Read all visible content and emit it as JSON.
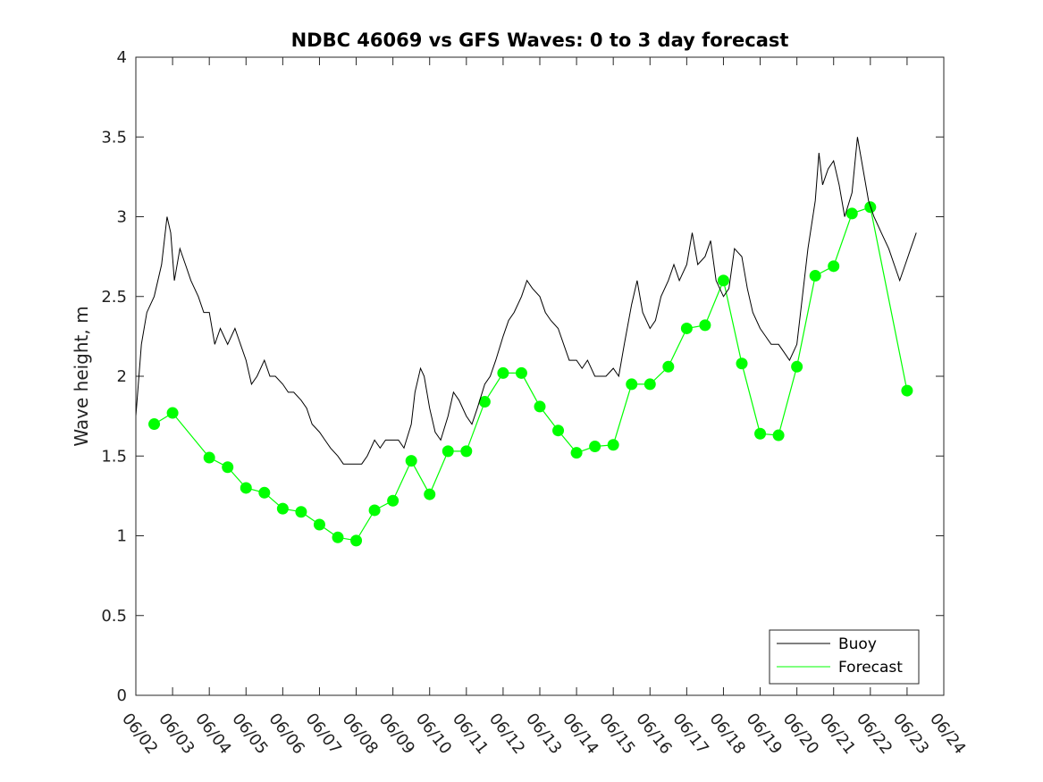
{
  "chart_data": {
    "type": "line",
    "title": "NDBC 46069 vs GFS Waves: 0 to 3 day forecast",
    "xlabel": "",
    "ylabel": "Wave height, m",
    "xlim": [
      "06/02",
      "06/24"
    ],
    "ylim": [
      0,
      4
    ],
    "x_ticks": [
      "06/02",
      "06/03",
      "06/04",
      "06/05",
      "06/06",
      "06/07",
      "06/08",
      "06/09",
      "06/10",
      "06/11",
      "06/12",
      "06/13",
      "06/14",
      "06/15",
      "06/16",
      "06/17",
      "06/18",
      "06/19",
      "06/20",
      "06/21",
      "06/22",
      "06/23",
      "06/24"
    ],
    "y_ticks": [
      "0",
      "0.5",
      "1",
      "1.5",
      "2",
      "2.5",
      "3",
      "3.5",
      "4"
    ],
    "grid": false,
    "legend_position": "bottom-right",
    "colors": {
      "buoy": "#000000",
      "forecast": "#00ff00"
    },
    "series": [
      {
        "name": "Buoy",
        "color": "#000000",
        "points_day_value": [
          [
            0.0,
            1.75
          ],
          [
            0.15,
            2.2
          ],
          [
            0.3,
            2.4
          ],
          [
            0.5,
            2.5
          ],
          [
            0.7,
            2.7
          ],
          [
            0.85,
            3.0
          ],
          [
            0.95,
            2.9
          ],
          [
            1.05,
            2.6
          ],
          [
            1.2,
            2.8
          ],
          [
            1.35,
            2.7
          ],
          [
            1.5,
            2.6
          ],
          [
            1.7,
            2.5
          ],
          [
            1.85,
            2.4
          ],
          [
            2.0,
            2.4
          ],
          [
            2.15,
            2.2
          ],
          [
            2.3,
            2.3
          ],
          [
            2.5,
            2.2
          ],
          [
            2.7,
            2.3
          ],
          [
            2.85,
            2.2
          ],
          [
            3.0,
            2.1
          ],
          [
            3.15,
            1.95
          ],
          [
            3.3,
            2.0
          ],
          [
            3.5,
            2.1
          ],
          [
            3.65,
            2.0
          ],
          [
            3.8,
            2.0
          ],
          [
            4.0,
            1.95
          ],
          [
            4.15,
            1.9
          ],
          [
            4.3,
            1.9
          ],
          [
            4.5,
            1.85
          ],
          [
            4.65,
            1.8
          ],
          [
            4.8,
            1.7
          ],
          [
            5.0,
            1.65
          ],
          [
            5.15,
            1.6
          ],
          [
            5.3,
            1.55
          ],
          [
            5.5,
            1.5
          ],
          [
            5.65,
            1.45
          ],
          [
            5.8,
            1.45
          ],
          [
            6.0,
            1.45
          ],
          [
            6.15,
            1.45
          ],
          [
            6.3,
            1.5
          ],
          [
            6.5,
            1.6
          ],
          [
            6.65,
            1.55
          ],
          [
            6.8,
            1.6
          ],
          [
            7.0,
            1.6
          ],
          [
            7.15,
            1.6
          ],
          [
            7.3,
            1.55
          ],
          [
            7.5,
            1.7
          ],
          [
            7.6,
            1.9
          ],
          [
            7.75,
            2.05
          ],
          [
            7.85,
            2.0
          ],
          [
            8.0,
            1.8
          ],
          [
            8.15,
            1.65
          ],
          [
            8.3,
            1.6
          ],
          [
            8.5,
            1.75
          ],
          [
            8.65,
            1.9
          ],
          [
            8.8,
            1.85
          ],
          [
            9.0,
            1.75
          ],
          [
            9.15,
            1.7
          ],
          [
            9.3,
            1.8
          ],
          [
            9.5,
            1.95
          ],
          [
            9.65,
            2.0
          ],
          [
            9.8,
            2.1
          ],
          [
            10.0,
            2.25
          ],
          [
            10.15,
            2.35
          ],
          [
            10.3,
            2.4
          ],
          [
            10.5,
            2.5
          ],
          [
            10.65,
            2.6
          ],
          [
            10.8,
            2.55
          ],
          [
            11.0,
            2.5
          ],
          [
            11.15,
            2.4
          ],
          [
            11.3,
            2.35
          ],
          [
            11.5,
            2.3
          ],
          [
            11.65,
            2.2
          ],
          [
            11.8,
            2.1
          ],
          [
            12.0,
            2.1
          ],
          [
            12.15,
            2.05
          ],
          [
            12.3,
            2.1
          ],
          [
            12.5,
            2.0
          ],
          [
            12.65,
            2.0
          ],
          [
            12.8,
            2.0
          ],
          [
            13.0,
            2.05
          ],
          [
            13.15,
            2.0
          ],
          [
            13.3,
            2.2
          ],
          [
            13.5,
            2.45
          ],
          [
            13.65,
            2.6
          ],
          [
            13.8,
            2.4
          ],
          [
            14.0,
            2.3
          ],
          [
            14.15,
            2.35
          ],
          [
            14.3,
            2.5
          ],
          [
            14.5,
            2.6
          ],
          [
            14.65,
            2.7
          ],
          [
            14.8,
            2.6
          ],
          [
            15.0,
            2.7
          ],
          [
            15.15,
            2.9
          ],
          [
            15.3,
            2.7
          ],
          [
            15.5,
            2.75
          ],
          [
            15.65,
            2.85
          ],
          [
            15.8,
            2.6
          ],
          [
            16.0,
            2.5
          ],
          [
            16.15,
            2.55
          ],
          [
            16.3,
            2.8
          ],
          [
            16.5,
            2.75
          ],
          [
            16.65,
            2.55
          ],
          [
            16.8,
            2.4
          ],
          [
            17.0,
            2.3
          ],
          [
            17.15,
            2.25
          ],
          [
            17.3,
            2.2
          ],
          [
            17.5,
            2.2
          ],
          [
            17.65,
            2.15
          ],
          [
            17.8,
            2.1
          ],
          [
            18.0,
            2.2
          ],
          [
            18.15,
            2.5
          ],
          [
            18.3,
            2.8
          ],
          [
            18.5,
            3.1
          ],
          [
            18.6,
            3.4
          ],
          [
            18.7,
            3.2
          ],
          [
            18.85,
            3.3
          ],
          [
            19.0,
            3.35
          ],
          [
            19.15,
            3.2
          ],
          [
            19.3,
            3.0
          ],
          [
            19.5,
            3.15
          ],
          [
            19.65,
            3.5
          ],
          [
            19.8,
            3.3
          ],
          [
            19.95,
            3.1
          ],
          [
            20.1,
            3.0
          ],
          [
            20.3,
            2.9
          ],
          [
            20.5,
            2.8
          ],
          [
            20.65,
            2.7
          ],
          [
            20.8,
            2.6
          ],
          [
            20.95,
            2.7
          ],
          [
            21.1,
            2.8
          ],
          [
            21.25,
            2.9
          ]
        ]
      },
      {
        "name": "Forecast",
        "color": "#00ff00",
        "points_day_value": [
          [
            0.5,
            1.7
          ],
          [
            1.0,
            1.77
          ],
          [
            2.0,
            1.49
          ],
          [
            2.5,
            1.43
          ],
          [
            3.0,
            1.3
          ],
          [
            3.5,
            1.27
          ],
          [
            4.0,
            1.17
          ],
          [
            4.5,
            1.15
          ],
          [
            5.0,
            1.07
          ],
          [
            5.5,
            0.99
          ],
          [
            6.0,
            0.97
          ],
          [
            6.5,
            1.16
          ],
          [
            7.0,
            1.22
          ],
          [
            7.5,
            1.47
          ],
          [
            8.0,
            1.26
          ],
          [
            8.5,
            1.53
          ],
          [
            9.0,
            1.53
          ],
          [
            9.5,
            1.84
          ],
          [
            10.0,
            2.02
          ],
          [
            10.5,
            2.02
          ],
          [
            11.0,
            1.81
          ],
          [
            11.5,
            1.66
          ],
          [
            12.0,
            1.52
          ],
          [
            12.5,
            1.56
          ],
          [
            13.0,
            1.57
          ],
          [
            13.5,
            1.95
          ],
          [
            14.0,
            1.95
          ],
          [
            14.5,
            2.06
          ],
          [
            15.0,
            2.3
          ],
          [
            15.5,
            2.32
          ],
          [
            16.0,
            2.6
          ],
          [
            16.5,
            2.08
          ],
          [
            17.0,
            1.64
          ],
          [
            17.5,
            1.63
          ],
          [
            18.0,
            2.06
          ],
          [
            18.5,
            2.63
          ],
          [
            19.0,
            2.69
          ],
          [
            19.5,
            3.02
          ],
          [
            20.0,
            3.06
          ],
          [
            21.0,
            1.91
          ]
        ]
      }
    ]
  },
  "legend": {
    "items": [
      {
        "label": "Buoy",
        "color": "#000000"
      },
      {
        "label": "Forecast",
        "color": "#00ff00"
      }
    ]
  }
}
